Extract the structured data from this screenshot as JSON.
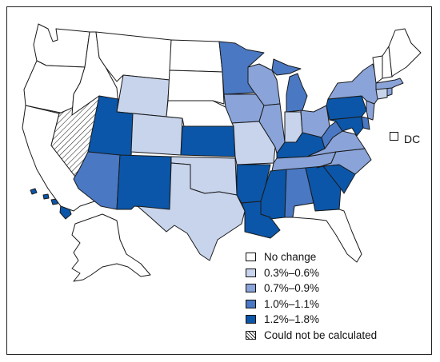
{
  "legend": {
    "items": [
      {
        "label": "No change",
        "color": "#ffffff"
      },
      {
        "label": "0.3%–0.6%",
        "color": "#c7d4ec"
      },
      {
        "label": "0.7%–0.9%",
        "color": "#8aa4d9"
      },
      {
        "label": "1.0%–1.1%",
        "color": "#4a78c3"
      },
      {
        "label": "1.2%–1.8%",
        "color": "#0b56a8"
      },
      {
        "label": "Could not be calculated",
        "color": "hatch"
      }
    ]
  },
  "dc": {
    "label": "DC",
    "category": "No change"
  },
  "state_categories": {
    "No change": [
      "WA",
      "OR",
      "CA",
      "ID",
      "MT",
      "NE",
      "SD",
      "ND",
      "ME",
      "NH",
      "VT",
      "DC"
    ],
    "0.3%–0.6%": [
      "WY",
      "CO",
      "TX",
      "OK",
      "MO",
      "IN",
      "CT"
    ],
    "0.7%–0.9%": [
      "IA",
      "IL",
      "OH",
      "NY",
      "VA",
      "NC",
      "TN",
      "NJ",
      "MA",
      "RI",
      "WI"
    ],
    "1.0%–1.1%": [
      "AZ",
      "MN",
      "MI",
      "AL",
      "WV",
      "DE"
    ],
    "1.2%–1.8%": [
      "UT",
      "NM",
      "KS",
      "AR",
      "LA",
      "MS",
      "GA",
      "SC",
      "KY",
      "PA",
      "MD",
      "HI"
    ],
    "Could not be calculated": [
      "NV"
    ]
  }
}
